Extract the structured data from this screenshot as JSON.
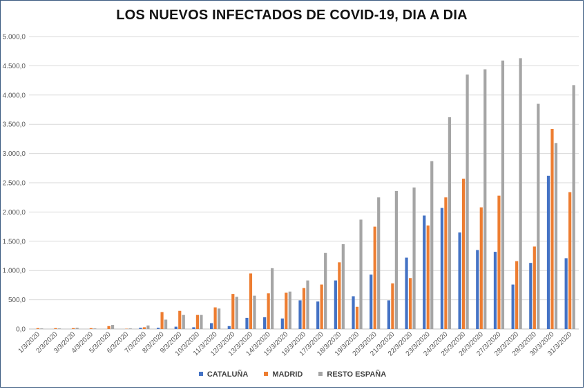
{
  "chart_data": {
    "type": "bar",
    "title": "LOS NUEVOS INFECTADOS DE COVID-19, DIA A DIA",
    "xlabel": "",
    "ylabel": "",
    "ylim": [
      0,
      5000
    ],
    "yticks": [
      "0,0",
      "500,0",
      "1.000,0",
      "1.500,0",
      "2.000,0",
      "2.500,0",
      "3.000,0",
      "3.500,0",
      "4.000,0",
      "4.500,0",
      "5.000,0"
    ],
    "grid": true,
    "legend_position": "bottom",
    "categories": [
      "1/3/2020",
      "2/3/2020",
      "3/3/2020",
      "4/3/2020",
      "5/3/2020",
      "6/3/2020",
      "7/3/2020",
      "8/3/2020",
      "9/3/2020",
      "10/3/2020",
      "11/3/2020",
      "12/3/2020",
      "13/3/2020",
      "14/3/2020",
      "15/3/2020",
      "16/3/2020",
      "17/3/2020",
      "18/3/2020",
      "19/3/2020",
      "20/3/2020",
      "21/3/2020",
      "22/3/2020",
      "23/3/2020",
      "24/3/2020",
      "25/3/2020",
      "26/3/2020",
      "27/3/2020",
      "28/3/2020",
      "29/3/2020",
      "30/3/2020",
      "31/3/2020"
    ],
    "series": [
      {
        "name": "CATALUÑA",
        "color": "#4472c4",
        "values": [
          0,
          0,
          0,
          0,
          0,
          0,
          20,
          20,
          40,
          30,
          100,
          50,
          190,
          200,
          180,
          490,
          470,
          830,
          560,
          930,
          490,
          1220,
          1940,
          2070,
          1650,
          1350,
          1320,
          760,
          1130,
          2620,
          1210
        ]
      },
      {
        "name": "MADRID",
        "color": "#ed7d31",
        "values": [
          15,
          15,
          15,
          15,
          50,
          5,
          30,
          290,
          310,
          240,
          370,
          600,
          950,
          610,
          620,
          700,
          760,
          1140,
          380,
          1750,
          780,
          870,
          1770,
          2250,
          2570,
          2080,
          2280,
          1160,
          1410,
          3420,
          2340
        ]
      },
      {
        "name": "RESTO ESPAÑA",
        "color": "#a5a5a5",
        "values": [
          10,
          10,
          20,
          10,
          70,
          10,
          60,
          160,
          240,
          240,
          350,
          550,
          570,
          1040,
          640,
          830,
          1300,
          1450,
          1870,
          2250,
          2360,
          2420,
          2870,
          3620,
          4350,
          4440,
          4590,
          4630,
          3850,
          3180,
          4170
        ]
      }
    ]
  }
}
